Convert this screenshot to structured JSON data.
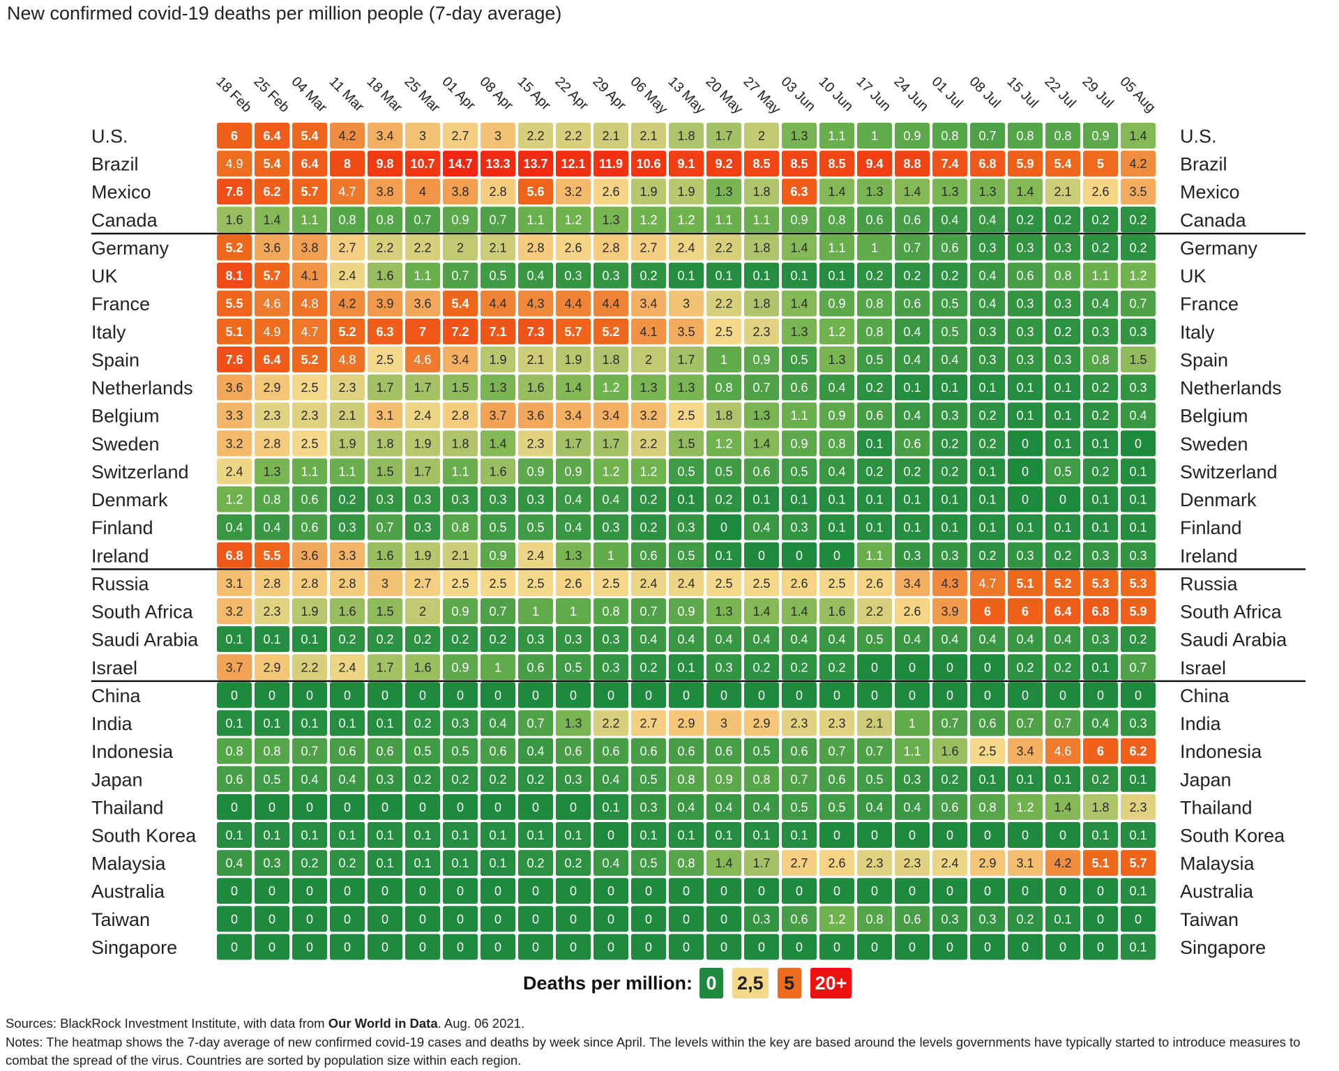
{
  "title": "New confirmed covid-19 deaths per million people (7-day average)",
  "legend": {
    "title": "Deaths per million:",
    "items": [
      {
        "label": "0",
        "color": "#1e8a3e",
        "text_color": "#ffffff"
      },
      {
        "label": "2,5",
        "color": "#f6d88a",
        "text_color": "#222222"
      },
      {
        "label": "5",
        "color": "#ee6a1c",
        "text_color": "#222222"
      },
      {
        "label": "20+",
        "color": "#ee1111",
        "text_color": "#ffffff"
      }
    ]
  },
  "sources": {
    "prefix": "Sources: BlackRock Investment Institute, with data from ",
    "bold": "Our World in Data",
    "suffix": ". Aug. 06 2021."
  },
  "notes": "Notes: The heatmap shows the 7-day average of new confirmed covid-19 cases and deaths by week since April. The levels within the key are based around the levels governments have typically started to introduce measures to combat the spread of the virus. Countries are sorted by population size within each region.",
  "chart_data": {
    "type": "heatmap",
    "title": "New confirmed covid-19 deaths per million people (7-day average)",
    "columns": [
      "18 Feb",
      "25 Feb",
      "04 Mar",
      "11 Mar",
      "18 Mar",
      "25 Mar",
      "01 Apr",
      "08 Apr",
      "15 Apr",
      "22 Apr",
      "29 Apr",
      "06 May",
      "13 May",
      "20 May",
      "27 May",
      "03 Jun",
      "10 Jun",
      "17 Jun",
      "24 Jun",
      "01 Jul",
      "08 Jul",
      "15 Jul",
      "22 Jul",
      "29 Jul",
      "05 Aug"
    ],
    "region_breaks_after_row": [
      3,
      15,
      19
    ],
    "rows": [
      {
        "name": "U.S.",
        "values": [
          6,
          6.4,
          5.4,
          4.2,
          3.4,
          3,
          2.7,
          3,
          2.2,
          2.2,
          2.1,
          2.1,
          1.8,
          1.7,
          2,
          1.3,
          1.1,
          1,
          0.9,
          0.8,
          0.7,
          0.8,
          0.8,
          0.9,
          1.4
        ]
      },
      {
        "name": "Brazil",
        "values": [
          4.9,
          5.4,
          6.4,
          8,
          9.8,
          10.7,
          14.7,
          13.3,
          13.7,
          12.1,
          11.9,
          10.6,
          9.1,
          9.2,
          8.5,
          8.5,
          8.5,
          9.4,
          8.8,
          7.4,
          6.8,
          5.9,
          5.4,
          5,
          4.2
        ]
      },
      {
        "name": "Mexico",
        "values": [
          7.6,
          6.2,
          5.7,
          4.7,
          3.8,
          4,
          3.8,
          2.8,
          5.6,
          3.2,
          2.6,
          1.9,
          1.9,
          1.3,
          1.8,
          6.3,
          1.4,
          1.3,
          1.4,
          1.3,
          1.3,
          1.4,
          2.1,
          2.6,
          3.5
        ]
      },
      {
        "name": "Canada",
        "values": [
          1.6,
          1.4,
          1.1,
          0.8,
          0.8,
          0.7,
          0.9,
          0.7,
          1.1,
          1.2,
          1.3,
          1.2,
          1.2,
          1.1,
          1.1,
          0.9,
          0.8,
          0.6,
          0.6,
          0.4,
          0.4,
          0.2,
          0.2,
          0.2,
          0.2
        ]
      },
      {
        "name": "Germany",
        "values": [
          5.2,
          3.6,
          3.8,
          2.7,
          2.2,
          2.2,
          2,
          2.1,
          2.8,
          2.6,
          2.8,
          2.7,
          2.4,
          2.2,
          1.8,
          1.4,
          1.1,
          1,
          0.7,
          0.6,
          0.3,
          0.3,
          0.3,
          0.2,
          0.2
        ]
      },
      {
        "name": "UK",
        "values": [
          8.1,
          5.7,
          4.1,
          2.4,
          1.6,
          1.1,
          0.7,
          0.5,
          0.4,
          0.3,
          0.3,
          0.2,
          0.1,
          0.1,
          0.1,
          0.1,
          0.1,
          0.2,
          0.2,
          0.2,
          0.4,
          0.6,
          0.8,
          1.1,
          1.2
        ]
      },
      {
        "name": "France",
        "values": [
          5.5,
          4.6,
          4.8,
          4.2,
          3.9,
          3.6,
          5.4,
          4.4,
          4.3,
          4.4,
          4.4,
          3.4,
          3,
          2.2,
          1.8,
          1.4,
          0.9,
          0.8,
          0.6,
          0.5,
          0.4,
          0.3,
          0.3,
          0.4,
          0.7
        ]
      },
      {
        "name": "Italy",
        "values": [
          5.1,
          4.9,
          4.7,
          5.2,
          6.3,
          7,
          7.2,
          7.1,
          7.3,
          5.7,
          5.2,
          4.1,
          3.5,
          2.5,
          2.3,
          1.3,
          1.2,
          0.8,
          0.4,
          0.5,
          0.3,
          0.3,
          0.2,
          0.3,
          0.3
        ]
      },
      {
        "name": "Spain",
        "values": [
          7.6,
          6.4,
          5.2,
          4.8,
          2.5,
          4.6,
          3.4,
          1.9,
          2.1,
          1.9,
          1.8,
          2,
          1.7,
          1,
          0.9,
          0.5,
          1.3,
          0.5,
          0.4,
          0.4,
          0.3,
          0.3,
          0.3,
          0.8,
          1.5
        ]
      },
      {
        "name": "Netherlands",
        "values": [
          3.6,
          2.9,
          2.5,
          2.3,
          1.7,
          1.7,
          1.5,
          1.3,
          1.6,
          1.4,
          1.2,
          1.3,
          1.3,
          0.8,
          0.7,
          0.6,
          0.4,
          0.2,
          0.1,
          0.1,
          0.1,
          0.1,
          0.1,
          0.2,
          0.3
        ]
      },
      {
        "name": "Belgium",
        "values": [
          3.3,
          2.3,
          2.3,
          2.1,
          3.1,
          2.4,
          2.8,
          3.7,
          3.6,
          3.4,
          3.4,
          3.2,
          2.5,
          1.8,
          1.3,
          1.1,
          0.9,
          0.6,
          0.4,
          0.3,
          0.2,
          0.1,
          0.1,
          0.2,
          0.4
        ]
      },
      {
        "name": "Sweden",
        "values": [
          3.2,
          2.8,
          2.5,
          1.9,
          1.8,
          1.9,
          1.8,
          1.4,
          2.3,
          1.7,
          1.7,
          2.2,
          1.5,
          1.2,
          1.4,
          0.9,
          0.8,
          0.1,
          0.6,
          0.2,
          0.2,
          0,
          0.1,
          0.1,
          0
        ]
      },
      {
        "name": "Switzerland",
        "values": [
          2.4,
          1.3,
          1.1,
          1.1,
          1.5,
          1.7,
          1.1,
          1.6,
          0.9,
          0.9,
          1.2,
          1.2,
          0.5,
          0.5,
          0.6,
          0.5,
          0.4,
          0.2,
          0.2,
          0.2,
          0.1,
          0,
          0.5,
          0.2,
          0.1
        ]
      },
      {
        "name": "Denmark",
        "values": [
          1.2,
          0.8,
          0.6,
          0.2,
          0.3,
          0.3,
          0.3,
          0.3,
          0.3,
          0.4,
          0.4,
          0.2,
          0.1,
          0.2,
          0.1,
          0.1,
          0.1,
          0.1,
          0.1,
          0.1,
          0.1,
          0,
          0,
          0.1,
          0.1
        ]
      },
      {
        "name": "Finland",
        "values": [
          0.4,
          0.4,
          0.6,
          0.3,
          0.7,
          0.3,
          0.8,
          0.5,
          0.5,
          0.4,
          0.3,
          0.2,
          0.3,
          0,
          0.4,
          0.3,
          0.1,
          0.1,
          0.1,
          0.1,
          0.1,
          0.1,
          0.1,
          0.1,
          0.1
        ]
      },
      {
        "name": "Ireland",
        "values": [
          6.8,
          5.5,
          3.6,
          3.3,
          1.6,
          1.9,
          2.1,
          0.9,
          2.4,
          1.3,
          1,
          0.6,
          0.5,
          0.1,
          0,
          0,
          0,
          1.1,
          0.3,
          0.3,
          0.2,
          0.3,
          0.2,
          0.3,
          0.3
        ]
      },
      {
        "name": "Russia",
        "values": [
          3.1,
          2.8,
          2.8,
          2.8,
          3,
          2.7,
          2.5,
          2.5,
          2.5,
          2.6,
          2.5,
          2.4,
          2.4,
          2.5,
          2.5,
          2.6,
          2.5,
          2.6,
          3.4,
          4.3,
          4.7,
          5.1,
          5.2,
          5.3,
          5.3
        ]
      },
      {
        "name": "South Africa",
        "values": [
          3.2,
          2.3,
          1.9,
          1.6,
          1.5,
          2,
          0.9,
          0.7,
          1,
          1,
          0.8,
          0.7,
          0.9,
          1.3,
          1.4,
          1.4,
          1.6,
          2.2,
          2.6,
          3.9,
          6,
          6,
          6.4,
          6.8,
          5.9
        ]
      },
      {
        "name": "Saudi Arabia",
        "values": [
          0.1,
          0.1,
          0.1,
          0.2,
          0.2,
          0.2,
          0.2,
          0.2,
          0.3,
          0.3,
          0.3,
          0.4,
          0.4,
          0.4,
          0.4,
          0.4,
          0.4,
          0.5,
          0.4,
          0.4,
          0.4,
          0.4,
          0.4,
          0.3,
          0.2
        ]
      },
      {
        "name": "Israel",
        "values": [
          3.7,
          2.9,
          2.2,
          2.4,
          1.7,
          1.6,
          0.9,
          1,
          0.6,
          0.5,
          0.3,
          0.2,
          0.1,
          0.3,
          0.2,
          0.2,
          0.2,
          0,
          0,
          0,
          0,
          0.2,
          0.2,
          0.1,
          0.7
        ]
      },
      {
        "name": "China",
        "values": [
          0,
          0,
          0,
          0,
          0,
          0,
          0,
          0,
          0,
          0,
          0,
          0,
          0,
          0,
          0,
          0,
          0,
          0,
          0,
          0,
          0,
          0,
          0,
          0,
          0
        ]
      },
      {
        "name": "India",
        "values": [
          0.1,
          0.1,
          0.1,
          0.1,
          0.1,
          0.2,
          0.3,
          0.4,
          0.7,
          1.3,
          2.2,
          2.7,
          2.9,
          3,
          2.9,
          2.3,
          2.3,
          2.1,
          1,
          0.7,
          0.6,
          0.7,
          0.7,
          0.4,
          0.3
        ]
      },
      {
        "name": "Indonesia",
        "values": [
          0.8,
          0.8,
          0.7,
          0.6,
          0.6,
          0.5,
          0.5,
          0.6,
          0.4,
          0.6,
          0.6,
          0.6,
          0.6,
          0.6,
          0.5,
          0.6,
          0.7,
          0.7,
          1.1,
          1.6,
          2.5,
          3.4,
          4.6,
          6,
          6.2
        ]
      },
      {
        "name": "Japan",
        "values": [
          0.6,
          0.5,
          0.4,
          0.4,
          0.3,
          0.2,
          0.2,
          0.2,
          0.2,
          0.3,
          0.4,
          0.5,
          0.8,
          0.9,
          0.8,
          0.7,
          0.6,
          0.5,
          0.3,
          0.2,
          0.1,
          0.1,
          0.1,
          0.2,
          0.1
        ]
      },
      {
        "name": "Thailand",
        "values": [
          0,
          0,
          0,
          0,
          0,
          0,
          0,
          0,
          0,
          0,
          0.1,
          0.3,
          0.4,
          0.4,
          0.4,
          0.5,
          0.5,
          0.4,
          0.4,
          0.6,
          0.8,
          1.2,
          1.4,
          1.8,
          2.3
        ]
      },
      {
        "name": "South Korea",
        "values": [
          0.1,
          0.1,
          0.1,
          0.1,
          0.1,
          0.1,
          0.1,
          0.1,
          0.1,
          0.1,
          0,
          0.1,
          0.1,
          0.1,
          0.1,
          0.1,
          0,
          0,
          0,
          0,
          0,
          0,
          0,
          0.1,
          0.1
        ]
      },
      {
        "name": "Malaysia",
        "values": [
          0.4,
          0.3,
          0.2,
          0.2,
          0.1,
          0.1,
          0.1,
          0.1,
          0.2,
          0.2,
          0.4,
          0.5,
          0.8,
          1.4,
          1.7,
          2.7,
          2.6,
          2.3,
          2.3,
          2.4,
          2.9,
          3.1,
          4.2,
          5.1,
          5.7
        ]
      },
      {
        "name": "Australia",
        "values": [
          0,
          0,
          0,
          0,
          0,
          0,
          0,
          0,
          0,
          0,
          0,
          0,
          0,
          0,
          0,
          0,
          0,
          0,
          0,
          0,
          0,
          0,
          0,
          0,
          0.1
        ]
      },
      {
        "name": "Taiwan",
        "values": [
          0,
          0,
          0,
          0,
          0,
          0,
          0,
          0,
          0,
          0,
          0,
          0,
          0,
          0,
          0.3,
          0.6,
          1.2,
          0.8,
          0.6,
          0.3,
          0.3,
          0.2,
          0.1,
          0,
          0
        ]
      },
      {
        "name": "Singapore",
        "values": [
          0,
          0,
          0,
          0,
          0,
          0,
          0,
          0,
          0,
          0,
          0,
          0,
          0,
          0,
          0,
          0,
          0,
          0,
          0,
          0,
          0,
          0,
          0,
          0,
          0.1
        ]
      }
    ]
  }
}
